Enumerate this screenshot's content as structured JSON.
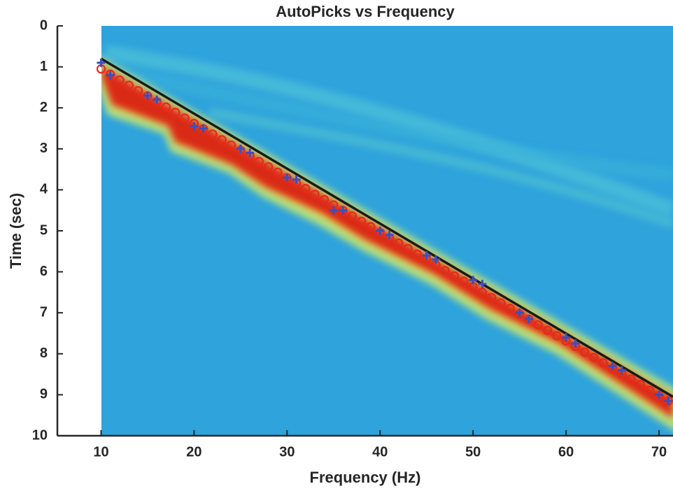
{
  "chart_data": {
    "type": "scatter",
    "title": "AutoPicks vs Frequency",
    "xlabel": "Frequency (Hz)",
    "ylabel": "Time (sec)",
    "xlim": [
      5.3,
      71.5
    ],
    "ylim": [
      10,
      0
    ],
    "xticks": [
      10,
      20,
      30,
      40,
      50,
      60,
      70
    ],
    "yticks": [
      0,
      1,
      2,
      3,
      4,
      5,
      6,
      7,
      8,
      9,
      10
    ],
    "series": [
      {
        "type": "line",
        "color": "#1a1a1a",
        "x": [
          10,
          71.5
        ],
        "values": [
          0.8,
          9.05
        ]
      },
      {
        "marker": "circle",
        "color": "#e8281e",
        "x": [
          10,
          11,
          12,
          13,
          14,
          15,
          16,
          17,
          18,
          19,
          20,
          21,
          22,
          23,
          24,
          25,
          26,
          27,
          28,
          29,
          30,
          31,
          32,
          33,
          34,
          35,
          36,
          37,
          38,
          39,
          40,
          41,
          42,
          43,
          44,
          45,
          46,
          47,
          48,
          49,
          50,
          51,
          52,
          53,
          54,
          55,
          56,
          57,
          58,
          59,
          60,
          61,
          62,
          63,
          64,
          65,
          66,
          67,
          68,
          69,
          70,
          71
        ],
        "values": [
          1.05,
          1.18,
          1.32,
          1.45,
          1.58,
          1.71,
          1.85,
          1.98,
          2.11,
          2.25,
          2.38,
          2.51,
          2.64,
          2.78,
          2.91,
          3.04,
          3.18,
          3.31,
          3.44,
          3.57,
          3.71,
          3.84,
          3.97,
          4.11,
          4.24,
          4.37,
          4.5,
          4.64,
          4.77,
          4.9,
          5.04,
          5.17,
          5.3,
          5.43,
          5.57,
          5.7,
          5.83,
          5.97,
          6.1,
          6.23,
          6.36,
          6.5,
          6.63,
          6.76,
          6.89,
          7.03,
          7.16,
          7.29,
          7.43,
          7.56,
          7.69,
          7.82,
          7.96,
          8.09,
          8.22,
          8.36,
          8.49,
          8.62,
          8.75,
          8.89,
          9.02,
          9.15
        ]
      },
      {
        "marker": "plus",
        "color": "#3a4fc0",
        "x": [
          10,
          11,
          15,
          16,
          20,
          21,
          25,
          26,
          30,
          31,
          35,
          36,
          40,
          41,
          45,
          46,
          50,
          51,
          55,
          56,
          60,
          61,
          65,
          66,
          70,
          71
        ],
        "values": [
          0.9,
          1.2,
          1.7,
          1.8,
          2.45,
          2.5,
          3.0,
          3.1,
          3.7,
          3.75,
          4.5,
          4.5,
          5.0,
          5.1,
          5.6,
          5.7,
          6.2,
          6.3,
          7.0,
          7.15,
          7.6,
          7.75,
          8.3,
          8.4,
          9.0,
          9.15
        ]
      }
    ]
  }
}
